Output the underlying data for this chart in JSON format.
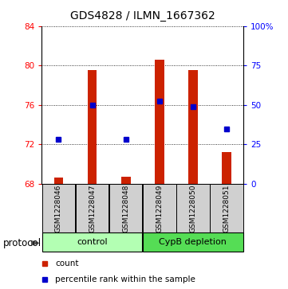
{
  "title": "GDS4828 / ILMN_1667362",
  "samples": [
    "GSM1228046",
    "GSM1228047",
    "GSM1228048",
    "GSM1228049",
    "GSM1228050",
    "GSM1228051"
  ],
  "bar_values": [
    68.6,
    79.5,
    68.7,
    80.6,
    79.5,
    71.2
  ],
  "percentile_values": [
    72.5,
    76.0,
    72.5,
    76.4,
    75.8,
    73.5
  ],
  "ylim": [
    68,
    84
  ],
  "yticks_left": [
    68,
    72,
    76,
    80,
    84
  ],
  "right_tick_positions": [
    68,
    72,
    76,
    80,
    84
  ],
  "right_tick_labels": [
    "0",
    "25",
    "50",
    "75",
    "100%"
  ],
  "bar_color": "#cc2200",
  "dot_color": "#0000cc",
  "bar_bottom": 68,
  "groups": [
    {
      "label": "control",
      "samples": [
        0,
        1,
        2
      ],
      "color": "#b3ffb3"
    },
    {
      "label": "CypB depletion",
      "samples": [
        3,
        4,
        5
      ],
      "color": "#55dd55"
    }
  ],
  "protocol_label": "protocol",
  "legend_count_label": "count",
  "legend_pct_label": "percentile rank within the sample",
  "title_fontsize": 10,
  "tick_fontsize": 7.5,
  "sample_fontsize": 6.5,
  "group_fontsize": 8,
  "legend_fontsize": 7.5,
  "sample_box_color": "#d0d0d0",
  "bar_width": 0.28
}
